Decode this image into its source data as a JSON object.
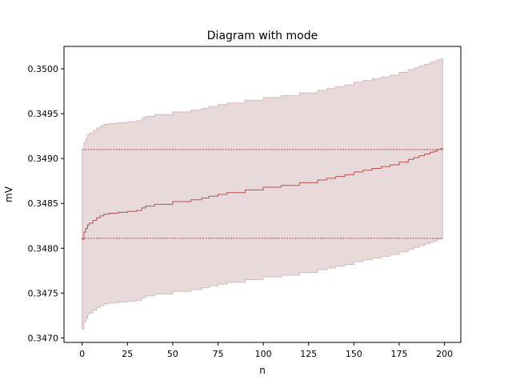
{
  "chart_data": {
    "type": "line",
    "title": "Diagram with mode",
    "xlabel": "n",
    "ylabel": "mV",
    "xlim": [
      -10,
      209
    ],
    "ylim": [
      0.34695,
      0.35025
    ],
    "xticks": [
      0,
      25,
      50,
      75,
      100,
      125,
      150,
      175,
      200
    ],
    "yticks": [
      0.347,
      0.3475,
      0.348,
      0.3485,
      0.349,
      0.3495,
      0.35
    ],
    "ytick_labels": [
      "0.3470",
      "0.3475",
      "0.3480",
      "0.3485",
      "0.3490",
      "0.3495",
      "0.3500"
    ],
    "grid": false,
    "colors": {
      "line": "#b5514f",
      "band_fill": "#e8dadb",
      "band_edge": "#d6b9bb",
      "mode_line": "#9c2b2b"
    },
    "series": [
      {
        "role": "center",
        "x": [
          0,
          1,
          2,
          3,
          4,
          6,
          8,
          10,
          12,
          15,
          20,
          25,
          30,
          33,
          35,
          40,
          50,
          60,
          66,
          70,
          75,
          80,
          90,
          100,
          110,
          120,
          130,
          135,
          140,
          145,
          150,
          155,
          160,
          165,
          170,
          175,
          180,
          183,
          186,
          189,
          192,
          194,
          196,
          198,
          199
        ],
        "y": [
          0.3481,
          0.34818,
          0.34822,
          0.34826,
          0.34828,
          0.34831,
          0.34834,
          0.34836,
          0.34838,
          0.34839,
          0.3484,
          0.34841,
          0.34842,
          0.34845,
          0.34847,
          0.34849,
          0.34852,
          0.34854,
          0.34856,
          0.34858,
          0.3486,
          0.34862,
          0.34865,
          0.34868,
          0.3487,
          0.34873,
          0.34876,
          0.34878,
          0.3488,
          0.34882,
          0.34885,
          0.34887,
          0.34889,
          0.34891,
          0.34893,
          0.34896,
          0.34899,
          0.34901,
          0.34903,
          0.34905,
          0.34907,
          0.34908,
          0.3491,
          0.34911,
          0.34912
        ]
      },
      {
        "role": "upper",
        "x": [
          0,
          1,
          2,
          3,
          4,
          6,
          8,
          10,
          12,
          15,
          20,
          25,
          30,
          33,
          35,
          40,
          50,
          60,
          66,
          70,
          75,
          80,
          90,
          100,
          110,
          120,
          130,
          135,
          140,
          145,
          150,
          155,
          160,
          165,
          170,
          175,
          180,
          183,
          186,
          189,
          192,
          194,
          196,
          198,
          199
        ],
        "y": [
          0.3491,
          0.34918,
          0.34922,
          0.34926,
          0.34928,
          0.34931,
          0.34934,
          0.34936,
          0.34938,
          0.34939,
          0.3494,
          0.34941,
          0.34942,
          0.34945,
          0.34947,
          0.34949,
          0.34952,
          0.34954,
          0.34956,
          0.34958,
          0.3496,
          0.34962,
          0.34965,
          0.34968,
          0.3497,
          0.34973,
          0.34976,
          0.34978,
          0.3498,
          0.34982,
          0.34985,
          0.34987,
          0.34989,
          0.34991,
          0.34993,
          0.34996,
          0.34999,
          0.35001,
          0.35003,
          0.35005,
          0.35007,
          0.35008,
          0.3501,
          0.35011,
          0.35012
        ]
      },
      {
        "role": "lower",
        "x": [
          0,
          1,
          2,
          3,
          4,
          6,
          8,
          10,
          12,
          15,
          20,
          25,
          30,
          33,
          35,
          40,
          50,
          60,
          66,
          70,
          75,
          80,
          90,
          100,
          110,
          120,
          130,
          135,
          140,
          145,
          150,
          155,
          160,
          165,
          170,
          175,
          180,
          183,
          186,
          189,
          192,
          194,
          196,
          198,
          199
        ],
        "y": [
          0.3471,
          0.34718,
          0.34722,
          0.34726,
          0.34728,
          0.34731,
          0.34734,
          0.34736,
          0.34738,
          0.34739,
          0.3474,
          0.34741,
          0.34742,
          0.34745,
          0.34747,
          0.34749,
          0.34752,
          0.34754,
          0.34756,
          0.34758,
          0.3476,
          0.34762,
          0.34765,
          0.34768,
          0.3477,
          0.34773,
          0.34776,
          0.34778,
          0.3478,
          0.34782,
          0.34785,
          0.34787,
          0.34789,
          0.34791,
          0.34793,
          0.34796,
          0.34799,
          0.34801,
          0.34803,
          0.34805,
          0.34807,
          0.34808,
          0.3481,
          0.34811,
          0.34812
        ]
      }
    ],
    "mode_lines": [
      {
        "y": 0.3491,
        "x_range": [
          0,
          199
        ]
      },
      {
        "y": 0.34811,
        "x_range": [
          0,
          199
        ]
      }
    ]
  }
}
